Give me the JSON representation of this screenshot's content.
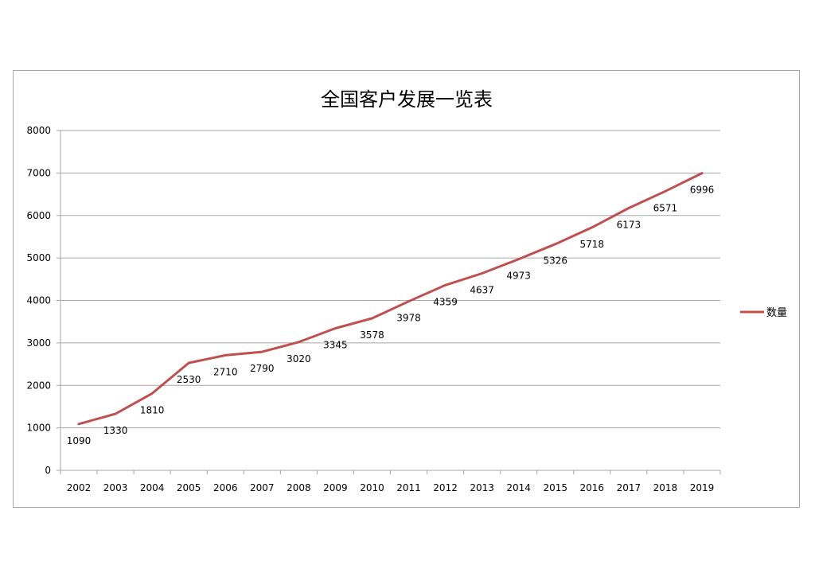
{
  "chart_data": {
    "type": "line",
    "title": "全国客户发展一览表",
    "xlabel": "",
    "ylabel": "",
    "categories": [
      "2002",
      "2003",
      "2004",
      "2005",
      "2006",
      "2007",
      "2008",
      "2009",
      "2010",
      "2011",
      "2012",
      "2013",
      "2014",
      "2015",
      "2016",
      "2017",
      "2018",
      "2019"
    ],
    "series": [
      {
        "name": "数量",
        "color": "#c0504d",
        "values": [
          1090,
          1330,
          1810,
          2530,
          2710,
          2790,
          3020,
          3345,
          3578,
          3978,
          4359,
          4637,
          4973,
          5326,
          5718,
          6173,
          6571,
          6996
        ]
      }
    ],
    "ylim": [
      0,
      8000
    ],
    "yticks": [
      0,
      1000,
      2000,
      3000,
      4000,
      5000,
      6000,
      7000,
      8000
    ],
    "grid": true,
    "legend_position": "right",
    "data_labels": "below"
  }
}
